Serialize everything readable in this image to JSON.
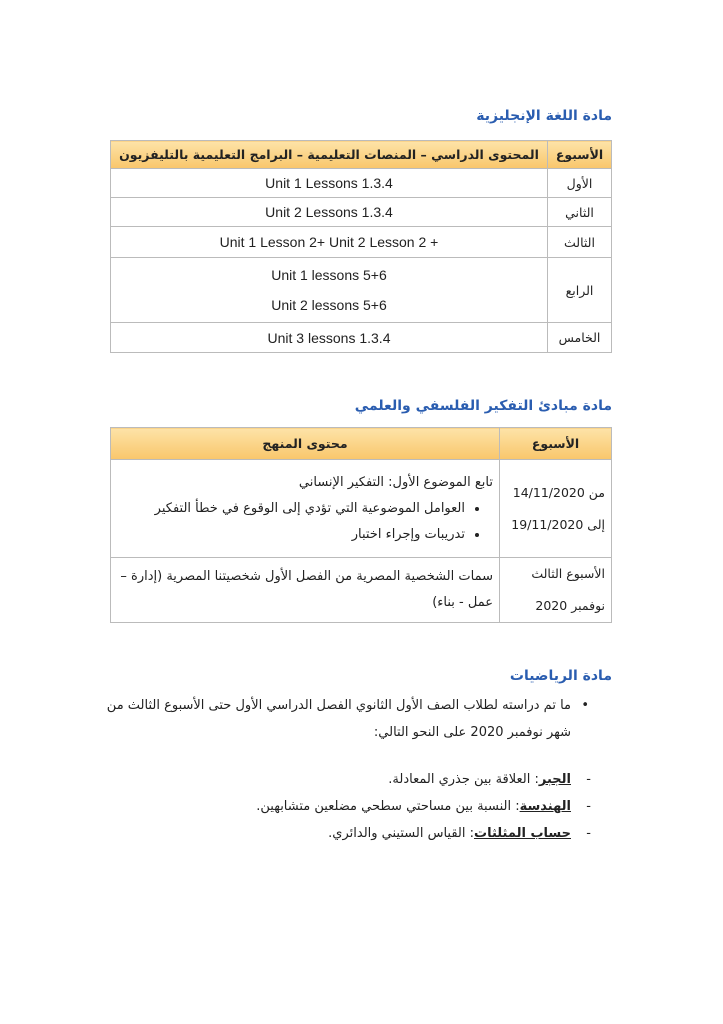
{
  "english": {
    "title": "مادة اللغة الإنجليزية",
    "header": [
      "الأسبوع",
      "المحتوى الدراسي – المنصات التعليمية – البرامج التعليمية بالتليفزيون"
    ],
    "rows": [
      [
        "الأول",
        [
          "Unit 1 Lessons 1.3.4"
        ]
      ],
      [
        "الثاني",
        [
          "Unit 2 Lessons 1.3.4"
        ]
      ],
      [
        "الثالث",
        [
          "Unit 1 Lesson 2+ Unit 2 Lesson 2 +"
        ]
      ],
      [
        "الرابع",
        [
          "Unit 1 lessons 5+6",
          "Unit 2 lessons 5+6"
        ]
      ],
      [
        "الخامس",
        [
          "Unit 3 lessons 1.3.4"
        ]
      ]
    ]
  },
  "philosophy": {
    "title": "مادة مبادئ التفكير الفلسفي والعلمي",
    "header": [
      "الأسبوع",
      "محتوى المنهج"
    ],
    "rows": [
      {
        "week": [
          "من 14/11/2020",
          "إلى 19/11/2020"
        ],
        "intro": "تابع الموضوع الأول: التفكير الإنساني",
        "bullets": [
          "العوامل الموضوعية التي تؤدي إلى الوقوع في خطأ التفكير",
          "تدريبات وإجراء اختبار"
        ]
      },
      {
        "week": [
          "الأسبوع الثالث",
          "نوفمبر 2020"
        ],
        "intro": "سمات الشخصية المصرية من الفصل الأول شخصيتنا المصرية (إدارة – عمل - بناء)",
        "bullets": []
      }
    ]
  },
  "math": {
    "title": "مادة الرياضيات",
    "intro": "ما تم دراسته لطلاب الصف الأول الثانوي الفصل الدراسي الأول حتى الأسبوع الثالث من شهر نوفمبر 2020 على النحو التالي:",
    "items": [
      {
        "term": "الجبر",
        "text": ": العلاقة بين جذري المعادلة."
      },
      {
        "term": "الهندسة",
        "text": ": النسبة بين مساحتي سطحي مضلعين متشابهين."
      },
      {
        "term": "حساب المثلثات",
        "text": ": القياس الستيني والدائري."
      }
    ]
  }
}
